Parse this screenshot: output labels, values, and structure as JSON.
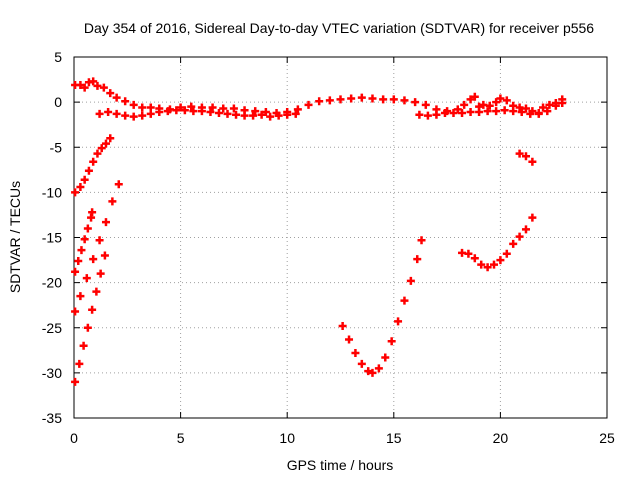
{
  "chart_data": {
    "type": "scatter",
    "title": "Day 354 of 2016, Sidereal Day-to-day VTEC variation (SDTVAR) for receiver p556",
    "xlabel": "GPS time / hours",
    "ylabel": "SDTVAR / TECUs",
    "xlim": [
      0,
      25
    ],
    "ylim": [
      -35,
      5
    ],
    "x_ticks": [
      "0",
      "5",
      "10",
      "15",
      "20",
      "25"
    ],
    "y_ticks": [
      "5",
      "0",
      "-5",
      "-10",
      "-15",
      "-20",
      "-25",
      "-30",
      "-35"
    ],
    "grid": true,
    "marker": "+",
    "series_color": "#ff0000",
    "series": [
      {
        "points": [
          [
            0.05,
            1.9
          ],
          [
            0.3,
            1.9
          ],
          [
            0.5,
            1.6
          ],
          [
            0.7,
            2.2
          ],
          [
            0.9,
            2.3
          ],
          [
            1.1,
            1.8
          ],
          [
            1.4,
            1.6
          ],
          [
            1.7,
            1.0
          ],
          [
            2.0,
            0.5
          ],
          [
            2.4,
            0.1
          ],
          [
            2.8,
            -0.3
          ],
          [
            3.2,
            -0.6
          ],
          [
            3.6,
            -0.6
          ],
          [
            4.0,
            -0.7
          ],
          [
            4.5,
            -0.8
          ],
          [
            5.0,
            -0.6
          ],
          [
            5.5,
            -0.5
          ],
          [
            6.0,
            -0.6
          ],
          [
            6.5,
            -0.6
          ],
          [
            7.0,
            -0.7
          ],
          [
            7.5,
            -0.7
          ],
          [
            8.0,
            -0.9
          ],
          [
            8.5,
            -1.0
          ],
          [
            9.0,
            -1.1
          ],
          [
            9.5,
            -1.2
          ],
          [
            10.0,
            -1.1
          ],
          [
            10.5,
            -0.8
          ],
          [
            11.0,
            -0.3
          ],
          [
            11.5,
            0.1
          ],
          [
            12.0,
            0.2
          ],
          [
            12.5,
            0.3
          ],
          [
            13.0,
            0.4
          ],
          [
            13.5,
            0.5
          ],
          [
            14.0,
            0.4
          ],
          [
            14.5,
            0.3
          ],
          [
            15.0,
            0.3
          ],
          [
            15.5,
            0.2
          ],
          [
            16.0,
            0.0
          ],
          [
            16.5,
            -0.3
          ],
          [
            17.0,
            -0.8
          ],
          [
            17.5,
            -1.0
          ],
          [
            18.0,
            -0.8
          ],
          [
            18.3,
            -0.3
          ],
          [
            18.6,
            0.3
          ],
          [
            18.8,
            0.6
          ],
          [
            19.0,
            -0.5
          ],
          [
            19.2,
            -0.3
          ],
          [
            19.5,
            -0.4
          ],
          [
            19.8,
            0.0
          ],
          [
            20.0,
            0.4
          ],
          [
            20.3,
            0.2
          ],
          [
            20.6,
            -0.4
          ],
          [
            20.9,
            -0.6
          ],
          [
            21.2,
            -0.7
          ],
          [
            21.5,
            -1.0
          ],
          [
            21.8,
            -1.2
          ],
          [
            22.0,
            -0.6
          ],
          [
            22.3,
            -0.3
          ],
          [
            22.6,
            -0.1
          ],
          [
            22.9,
            0.3
          ],
          [
            1.2,
            -1.3
          ],
          [
            1.6,
            -1.1
          ],
          [
            2.0,
            -1.3
          ],
          [
            2.4,
            -1.5
          ],
          [
            2.8,
            -1.6
          ],
          [
            3.2,
            -1.5
          ],
          [
            3.6,
            -1.3
          ],
          [
            4.0,
            -1.1
          ],
          [
            4.4,
            -1.0
          ],
          [
            4.8,
            -0.9
          ],
          [
            5.2,
            -0.9
          ],
          [
            5.6,
            -1.0
          ],
          [
            6.0,
            -1.0
          ],
          [
            6.4,
            -1.1
          ],
          [
            6.8,
            -1.2
          ],
          [
            7.2,
            -1.3
          ],
          [
            7.6,
            -1.4
          ],
          [
            8.0,
            -1.5
          ],
          [
            8.4,
            -1.5
          ],
          [
            8.8,
            -1.4
          ],
          [
            9.2,
            -1.6
          ],
          [
            9.6,
            -1.5
          ],
          [
            10.0,
            -1.4
          ],
          [
            10.4,
            -1.3
          ],
          [
            16.2,
            -1.4
          ],
          [
            16.6,
            -1.5
          ],
          [
            17.0,
            -1.4
          ],
          [
            17.4,
            -1.2
          ],
          [
            17.8,
            -1.2
          ],
          [
            18.2,
            -1.2
          ],
          [
            18.6,
            -1.1
          ],
          [
            19.0,
            -1.1
          ],
          [
            19.4,
            -1.0
          ],
          [
            19.8,
            -1.0
          ],
          [
            20.2,
            -0.9
          ],
          [
            20.6,
            -1.0
          ],
          [
            21.0,
            -1.1
          ],
          [
            21.4,
            -1.3
          ],
          [
            21.8,
            -1.3
          ],
          [
            22.2,
            -1.0
          ],
          [
            22.6,
            -0.4
          ],
          [
            22.9,
            -0.1
          ]
        ]
      },
      {
        "points": [
          [
            0.05,
            -10.0
          ],
          [
            0.3,
            -9.4
          ],
          [
            0.5,
            -8.6
          ],
          [
            0.7,
            -7.6
          ],
          [
            0.9,
            -6.6
          ],
          [
            1.1,
            -5.7
          ],
          [
            1.3,
            -5.1
          ],
          [
            1.5,
            -4.6
          ],
          [
            1.7,
            -4.0
          ],
          [
            0.05,
            -18.8
          ],
          [
            0.2,
            -17.6
          ],
          [
            0.35,
            -16.4
          ],
          [
            0.5,
            -15.2
          ],
          [
            0.65,
            -14.0
          ],
          [
            0.8,
            -12.8
          ],
          [
            0.85,
            -12.2
          ],
          [
            0.05,
            -23.2
          ],
          [
            0.3,
            -21.5
          ],
          [
            0.6,
            -19.5
          ],
          [
            0.9,
            -17.4
          ],
          [
            1.2,
            -15.3
          ],
          [
            1.5,
            -13.3
          ],
          [
            1.8,
            -11.0
          ],
          [
            2.1,
            -9.1
          ],
          [
            0.05,
            -31.0
          ],
          [
            0.25,
            -29.0
          ],
          [
            0.45,
            -27.0
          ],
          [
            0.65,
            -25.0
          ],
          [
            0.85,
            -23.0
          ],
          [
            1.05,
            -21.0
          ],
          [
            1.25,
            -19.0
          ],
          [
            1.45,
            -17.0
          ],
          [
            12.6,
            -24.8
          ],
          [
            12.9,
            -26.3
          ],
          [
            13.2,
            -27.8
          ],
          [
            13.5,
            -29.0
          ],
          [
            13.8,
            -29.8
          ],
          [
            14.0,
            -30.0
          ],
          [
            14.3,
            -29.5
          ],
          [
            14.6,
            -28.3
          ],
          [
            14.9,
            -26.5
          ],
          [
            15.2,
            -24.3
          ],
          [
            15.5,
            -22.0
          ],
          [
            15.8,
            -19.8
          ],
          [
            16.1,
            -17.4
          ],
          [
            16.3,
            -15.3
          ],
          [
            18.2,
            -16.7
          ],
          [
            18.5,
            -16.8
          ],
          [
            18.8,
            -17.3
          ],
          [
            19.1,
            -18.0
          ],
          [
            19.4,
            -18.3
          ],
          [
            19.7,
            -18.0
          ],
          [
            20.0,
            -17.5
          ],
          [
            20.3,
            -16.8
          ],
          [
            20.6,
            -15.7
          ],
          [
            20.9,
            -14.9
          ],
          [
            21.2,
            -14.1
          ],
          [
            21.5,
            -12.8
          ],
          [
            20.9,
            -5.7
          ],
          [
            21.2,
            -6.0
          ],
          [
            21.5,
            -6.6
          ]
        ]
      }
    ]
  }
}
